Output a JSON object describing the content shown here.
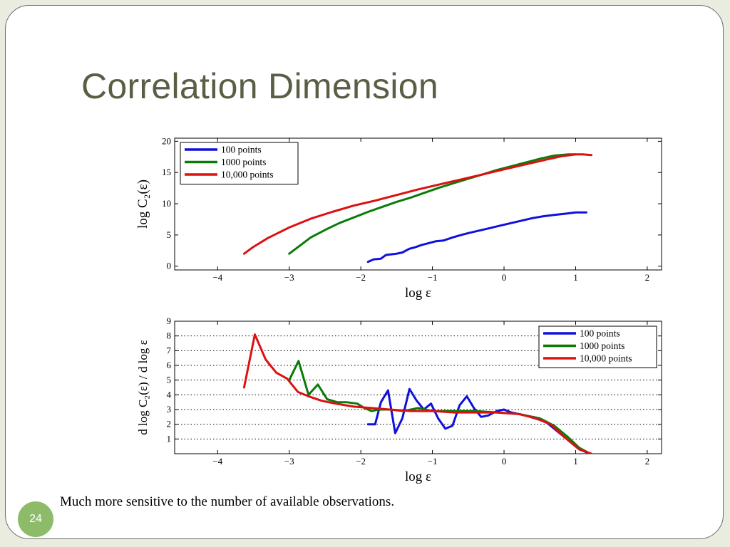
{
  "slide": {
    "title": "Correlation Dimension",
    "caption": "Much more sensitive to the number of available observations.",
    "page_number": "24"
  },
  "chart_data": [
    {
      "type": "line",
      "xlabel": "log ε",
      "ylabel": "log C₂(ε)",
      "xlim": [
        -4.6,
        2.2
      ],
      "ylim": [
        -0.6,
        20.5
      ],
      "xticks": [
        -4,
        -3,
        -2,
        -1,
        0,
        1,
        2
      ],
      "yticks": [
        0,
        5,
        10,
        15,
        20
      ],
      "grid": false,
      "legend_position": "top-left",
      "series": [
        {
          "name": "100 points",
          "color": "#1010dd",
          "x": [
            -1.9,
            -1.82,
            -1.72,
            -1.65,
            -1.58,
            -1.5,
            -1.42,
            -1.32,
            -1.25,
            -1.15,
            -1.05,
            -0.95,
            -0.85,
            -0.72,
            -0.6,
            -0.5,
            -0.35,
            -0.2,
            -0.05,
            0.1,
            0.25,
            0.4,
            0.55,
            0.7,
            0.85,
            1.0,
            1.15
          ],
          "y": [
            0.7,
            1.1,
            1.2,
            1.8,
            1.9,
            2.0,
            2.2,
            2.8,
            3.0,
            3.4,
            3.7,
            4.0,
            4.1,
            4.6,
            5.0,
            5.3,
            5.7,
            6.1,
            6.5,
            6.9,
            7.3,
            7.7,
            8.0,
            8.2,
            8.4,
            8.6,
            8.6
          ]
        },
        {
          "name": "1000 points",
          "color": "#0a7a0a",
          "x": [
            -3.0,
            -2.85,
            -2.7,
            -2.5,
            -2.3,
            -2.1,
            -1.9,
            -1.7,
            -1.5,
            -1.3,
            -1.1,
            -0.9,
            -0.7,
            -0.5,
            -0.3,
            -0.1,
            0.1,
            0.3,
            0.5,
            0.7,
            0.9,
            1.0
          ],
          "y": [
            2.0,
            3.3,
            4.6,
            5.8,
            6.9,
            7.8,
            8.7,
            9.5,
            10.3,
            11.0,
            11.8,
            12.6,
            13.3,
            14.0,
            14.7,
            15.4,
            16.0,
            16.6,
            17.2,
            17.7,
            17.9,
            17.9
          ]
        },
        {
          "name": "10,000 points",
          "color": "#dd1010",
          "x": [
            -3.63,
            -3.5,
            -3.3,
            -3.0,
            -2.7,
            -2.4,
            -2.1,
            -1.8,
            -1.5,
            -1.2,
            -0.9,
            -0.6,
            -0.3,
            0.0,
            0.3,
            0.6,
            0.8,
            1.0,
            1.1,
            1.22
          ],
          "y": [
            2.0,
            3.1,
            4.5,
            6.2,
            7.6,
            8.7,
            9.7,
            10.5,
            11.4,
            12.3,
            13.1,
            13.9,
            14.7,
            15.5,
            16.3,
            17.1,
            17.6,
            17.9,
            17.9,
            17.8
          ]
        }
      ]
    },
    {
      "type": "line",
      "xlabel": "log ε",
      "ylabel": "d log  C₂(ε) / d log ε",
      "xlim": [
        -4.6,
        2.2
      ],
      "ylim": [
        0,
        9
      ],
      "xticks": [
        -4,
        -3,
        -2,
        -1,
        0,
        1,
        2
      ],
      "yticks": [
        1,
        2,
        3,
        4,
        5,
        6,
        7,
        8,
        9
      ],
      "grid": "horizontal dotted",
      "legend_position": "top-right",
      "series": [
        {
          "name": "100 points",
          "color": "#1010dd",
          "x": [
            -1.9,
            -1.8,
            -1.72,
            -1.62,
            -1.52,
            -1.42,
            -1.32,
            -1.22,
            -1.12,
            -1.02,
            -0.92,
            -0.82,
            -0.72,
            -0.62,
            -0.52,
            -0.42,
            -0.32,
            -0.22,
            -0.1,
            0.0,
            0.1,
            0.3,
            0.5,
            0.6,
            0.7,
            0.9,
            1.05,
            1.2
          ],
          "y": [
            2.0,
            2.0,
            3.5,
            4.3,
            1.4,
            2.4,
            4.4,
            3.6,
            3.0,
            3.4,
            2.4,
            1.7,
            1.9,
            3.3,
            3.9,
            3.1,
            2.5,
            2.6,
            2.9,
            3.0,
            2.8,
            2.6,
            2.3,
            2.1,
            1.7,
            0.9,
            0.3,
            0.0
          ]
        },
        {
          "name": "1000 points",
          "color": "#0a7a0a",
          "x": [
            -3.0,
            -2.87,
            -2.73,
            -2.6,
            -2.47,
            -2.33,
            -2.2,
            -2.05,
            -1.95,
            -1.85,
            -1.75,
            -1.6,
            -1.4,
            -1.2,
            -1.0,
            -0.7,
            -0.4,
            -0.1,
            0.2,
            0.5,
            0.7,
            0.9,
            1.05,
            1.2
          ],
          "y": [
            5.0,
            6.3,
            4.0,
            4.7,
            3.7,
            3.5,
            3.5,
            3.4,
            3.1,
            2.9,
            3.0,
            3.0,
            2.9,
            3.1,
            2.9,
            2.9,
            2.9,
            2.8,
            2.7,
            2.4,
            1.9,
            1.1,
            0.4,
            0.0
          ]
        },
        {
          "name": "10,000 points",
          "color": "#dd1010",
          "x": [
            -3.63,
            -3.48,
            -3.33,
            -3.18,
            -3.03,
            -2.88,
            -2.73,
            -2.55,
            -2.35,
            -2.1,
            -1.85,
            -1.6,
            -1.3,
            -1.0,
            -0.7,
            -0.4,
            -0.1,
            0.2,
            0.45,
            0.65,
            0.85,
            1.05,
            1.22
          ],
          "y": [
            4.5,
            8.1,
            6.4,
            5.5,
            5.1,
            4.2,
            3.9,
            3.6,
            3.4,
            3.2,
            3.1,
            3.0,
            2.9,
            2.9,
            2.8,
            2.8,
            2.8,
            2.7,
            2.4,
            2.0,
            1.1,
            0.3,
            0.0
          ]
        }
      ]
    }
  ]
}
